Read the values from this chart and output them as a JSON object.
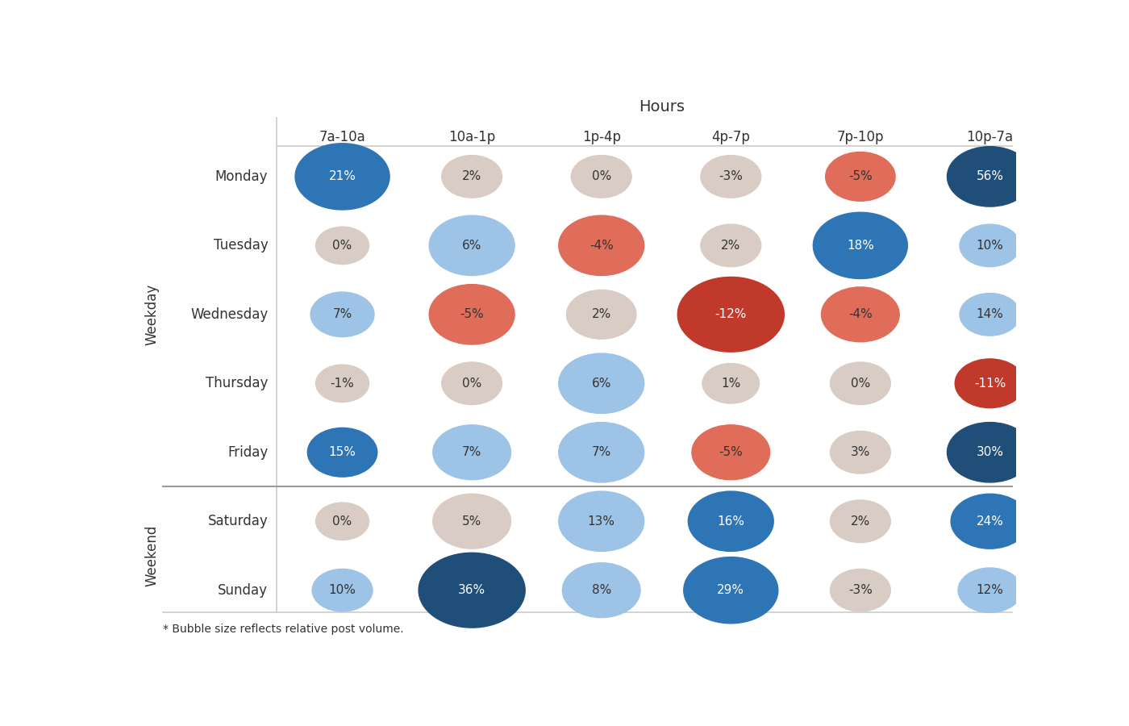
{
  "title": "Hours",
  "col_labels": [
    "7a-10a",
    "10a-1p",
    "1p-4p",
    "4p-7p",
    "7p-10p",
    "10p-7a"
  ],
  "row_labels": [
    "Monday",
    "Tuesday",
    "Wednesday",
    "Thursday",
    "Friday",
    "Saturday",
    "Sunday"
  ],
  "weekday_label": "Weekday",
  "weekend_label": "Weekend",
  "footnote": "* Bubble size reflects relative post volume.",
  "values": [
    [
      21,
      2,
      0,
      -3,
      -5,
      56
    ],
    [
      0,
      6,
      -4,
      2,
      18,
      10
    ],
    [
      7,
      -5,
      2,
      -12,
      -4,
      14
    ],
    [
      -1,
      0,
      6,
      1,
      0,
      -11
    ],
    [
      15,
      7,
      7,
      -5,
      3,
      30
    ],
    [
      0,
      5,
      13,
      16,
      2,
      24
    ],
    [
      10,
      36,
      8,
      29,
      -3,
      12
    ]
  ],
  "bubble_sizes": [
    [
      2200,
      900,
      900,
      900,
      1200,
      1800
    ],
    [
      700,
      1800,
      1800,
      900,
      2200,
      900
    ],
    [
      1000,
      1800,
      1200,
      2800,
      1500,
      900
    ],
    [
      700,
      900,
      1800,
      800,
      900,
      1200
    ],
    [
      1200,
      1500,
      1800,
      1500,
      900,
      1800
    ],
    [
      700,
      1500,
      1800,
      1800,
      900,
      1500
    ],
    [
      900,
      2800,
      1500,
      2200,
      900,
      1000
    ]
  ],
  "bg_color": "#ffffff",
  "grid_color": "#cccccc",
  "separator_color": "#999999",
  "title_fontsize": 14,
  "label_fontsize": 12,
  "bubble_text_fontsize": 11,
  "dark_blue": "#1f4e79",
  "medium_blue": "#2e75b6",
  "light_blue": "#9dc3e6",
  "salmon": "#e06c5a",
  "dark_red": "#c0392b",
  "light_beige": "#d9ccc5",
  "text_dark": "#333333",
  "text_light": "#ffffff"
}
